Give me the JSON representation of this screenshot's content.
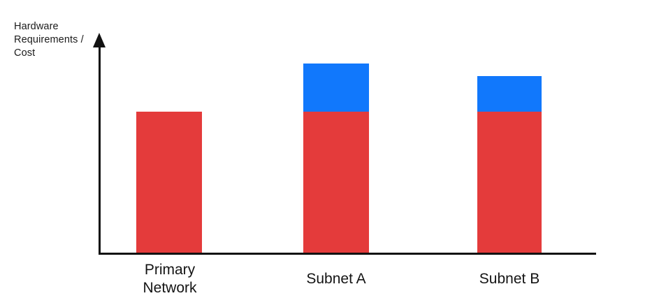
{
  "chart_data": {
    "type": "bar",
    "stacked": true,
    "title": "",
    "xlabel": "",
    "ylabel": "Hardware Requirements / Cost",
    "categories": [
      "Primary Network",
      "Subnet A",
      "Subnet B"
    ],
    "series": [
      {
        "name": "red-base-segment",
        "color": "#e43b3b",
        "values": [
          1.0,
          1.0,
          1.0
        ]
      },
      {
        "name": "blue-top-segment",
        "color": "#1178fc",
        "values": [
          0,
          0.34,
          0.25
        ]
      }
    ],
    "value_axis": "unlabeled qualitative axis with upward arrow",
    "ylim": [
      0,
      1.55
    ],
    "grid": false,
    "legend": "none",
    "background_color": "#ffffff",
    "axis_color": "#121212"
  }
}
